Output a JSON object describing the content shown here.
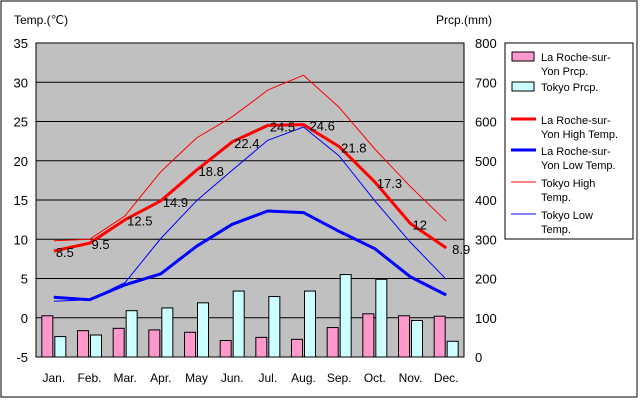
{
  "chart_data": {
    "type": "bar+line",
    "ylabel_left": "Temp.(℃)",
    "ylabel_right": "Prcp.(mm)",
    "categories": [
      "Jan.",
      "Feb.",
      "Mar.",
      "Apr.",
      "May",
      "Jun.",
      "Jul.",
      "Aug.",
      "Sep.",
      "Oct.",
      "Nov.",
      "Dec."
    ],
    "ylim_left": [
      -5,
      35
    ],
    "yticks_left": [
      "-5",
      "0",
      "5",
      "10",
      "15",
      "20",
      "25",
      "30",
      "35"
    ],
    "ylim_right": [
      0,
      800
    ],
    "yticks_right": [
      "0",
      "100",
      "200",
      "300",
      "400",
      "500",
      "600",
      "700",
      "800"
    ],
    "grid": true,
    "legend_position": "right",
    "bar_series": [
      {
        "name": "La Roche-sur-Yon Prcp.",
        "color": "#ff99cc",
        "values": [
          105,
          67,
          73,
          69,
          63,
          42,
          50,
          45,
          75,
          110,
          105,
          104
        ]
      },
      {
        "name": "Tokyo Prcp.",
        "color": "#ccffff",
        "values": [
          52,
          56,
          118,
          125,
          138,
          168,
          154,
          168,
          210,
          198,
          93,
          40
        ]
      }
    ],
    "line_series": [
      {
        "name": "La Roche-sur-Yon High Temp.",
        "color": "#ff0000",
        "width": 3,
        "values": [
          8.5,
          9.5,
          12.5,
          14.9,
          18.8,
          22.4,
          24.5,
          24.6,
          21.8,
          17.3,
          12,
          8.9
        ],
        "labels": [
          "8.5",
          "9.5",
          "12.5",
          "14.9",
          "18.8",
          "22.4",
          "24.5",
          "24.6",
          "21.8",
          "17.3",
          "12",
          "8.9"
        ]
      },
      {
        "name": "La Roche-sur-Yon Low Temp.",
        "color": "#0000ff",
        "width": 3,
        "values": [
          2.6,
          2.3,
          4.2,
          5.6,
          9.1,
          11.9,
          13.6,
          13.4,
          11.0,
          8.8,
          5.2,
          2.9
        ]
      },
      {
        "name": "Tokyo High Temp.",
        "color": "#ff0000",
        "width": 1,
        "values": [
          9.8,
          10.0,
          13.0,
          18.6,
          22.9,
          25.6,
          29.0,
          30.9,
          26.8,
          21.5,
          16.7,
          12.3
        ]
      },
      {
        "name": "Tokyo Low Temp.",
        "color": "#0000ff",
        "width": 1,
        "values": [
          2.1,
          2.3,
          4.5,
          10.1,
          14.9,
          18.8,
          22.6,
          24.3,
          20.6,
          14.9,
          9.6,
          4.9
        ]
      }
    ],
    "legend": [
      {
        "kind": "bar",
        "color": "#ff99cc",
        "lines": [
          "La Roche-sur-",
          "Yon Prcp."
        ]
      },
      {
        "kind": "bar",
        "color": "#ccffff",
        "lines": [
          "Tokyo Prcp."
        ]
      },
      {
        "kind": "line",
        "color": "#ff0000",
        "width": 3,
        "lines": [
          "La Roche-sur-",
          "Yon High Temp."
        ]
      },
      {
        "kind": "line",
        "color": "#0000ff",
        "width": 3,
        "lines": [
          "La Roche-sur-",
          "Yon Low Temp."
        ]
      },
      {
        "kind": "line",
        "color": "#ff0000",
        "width": 1,
        "lines": [
          "Tokyo High",
          "Temp."
        ]
      },
      {
        "kind": "line",
        "color": "#0000ff",
        "width": 1,
        "lines": [
          "Tokyo Low",
          "Temp."
        ]
      }
    ]
  }
}
